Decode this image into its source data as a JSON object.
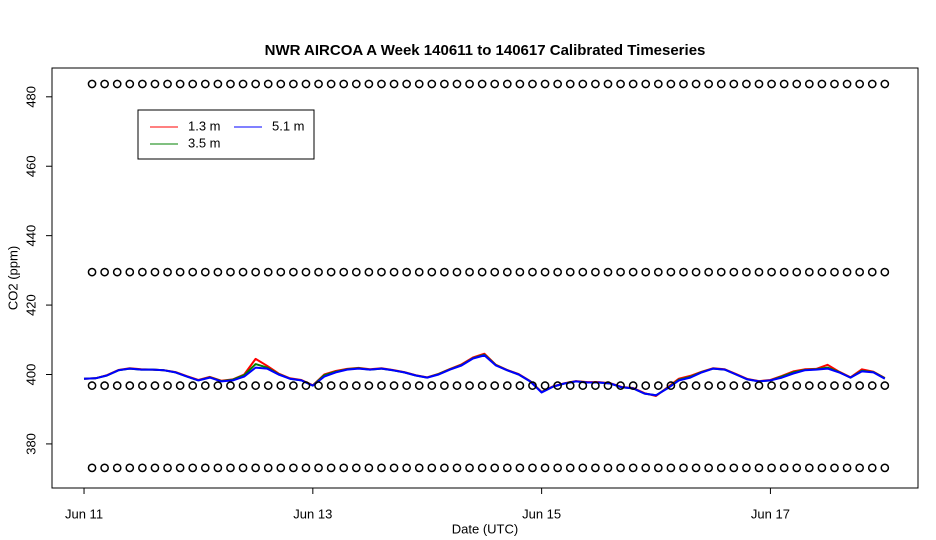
{
  "chart_data": {
    "type": "line",
    "title": "NWR AIRCOA A  Week 140611 to 140617  Calibrated Timeseries",
    "x_label": "Date (UTC)",
    "y_label": "CO2 (ppm)",
    "xlim": [
      -0.28,
      7.29
    ],
    "ylim": [
      367.3,
      488.3
    ],
    "xticks": [
      {
        "value": 0,
        "label": "Jun 11"
      },
      {
        "value": 2,
        "label": "Jun 13"
      },
      {
        "value": 4,
        "label": "Jun 15"
      },
      {
        "value": 6,
        "label": "Jun 17"
      }
    ],
    "yticks": [
      380,
      400,
      420,
      440,
      460,
      480
    ],
    "x": [
      0,
      0.1,
      0.2,
      0.3,
      0.4,
      0.5,
      0.6,
      0.7,
      0.8,
      0.9,
      1,
      1.1,
      1.2,
      1.3,
      1.4,
      1.5,
      1.6,
      1.7,
      1.8,
      1.9,
      2,
      2.1,
      2.2,
      2.3,
      2.4,
      2.5,
      2.6,
      2.7,
      2.8,
      2.9,
      3,
      3.1,
      3.2,
      3.3,
      3.4,
      3.5,
      3.6,
      3.7,
      3.8,
      3.9,
      4,
      4.1,
      4.2,
      4.3,
      4.4,
      4.5,
      4.6,
      4.7,
      4.8,
      4.9,
      5,
      5.1,
      5.2,
      5.3,
      5.4,
      5.5,
      5.6,
      5.7,
      5.8,
      5.9,
      6,
      6.1,
      6.2,
      6.3,
      6.4,
      6.5,
      6.6,
      6.7,
      6.8,
      6.9,
      7
    ],
    "series": [
      {
        "name": "1.3 m",
        "color": "#ff0000",
        "values": [
          398.8,
          398.9,
          399.8,
          401.3,
          401.8,
          401.5,
          401.4,
          401.2,
          400.7,
          399.5,
          398.4,
          399.3,
          398.2,
          398.6,
          400,
          404.5,
          402.5,
          400.3,
          398.9,
          398.4,
          396.9,
          400,
          401,
          401.6,
          401.9,
          401.5,
          401.8,
          401.3,
          400.7,
          399.8,
          399.2,
          400.2,
          401.6,
          402.9,
          404.9,
          406,
          402.8,
          401.3,
          400.1,
          398.1,
          395,
          396.6,
          397.5,
          398.1,
          397.8,
          397.8,
          397.5,
          396.4,
          396.1,
          394.6,
          393.8,
          396.3,
          398.8,
          399.6,
          400.8,
          401.8,
          401.5,
          400.1,
          398.7,
          398.1,
          398.4,
          399.6,
          400.9,
          401.5,
          401.6,
          402.8,
          400.8,
          399.2,
          401.5,
          400.8,
          399
        ]
      },
      {
        "name": "3.5 m",
        "color": "#008000",
        "values": [
          398.8,
          398.9,
          399.7,
          401.2,
          401.7,
          401.4,
          401.4,
          401.2,
          400.6,
          399.4,
          398.3,
          399.2,
          398.1,
          398.5,
          399.8,
          403,
          402,
          400.1,
          398.8,
          398.3,
          396.8,
          399.8,
          400.8,
          401.5,
          401.8,
          401.4,
          401.7,
          401.2,
          400.6,
          399.7,
          399.1,
          400.1,
          401.5,
          402.7,
          404.7,
          405.7,
          402.7,
          401.2,
          400,
          398,
          394.9,
          396.5,
          397.4,
          398,
          397.7,
          397.7,
          397.4,
          396.3,
          396,
          394.5,
          394,
          396.1,
          398.5,
          399.3,
          400.7,
          401.7,
          401.4,
          400,
          398.6,
          398,
          398.3,
          399.4,
          400.6,
          401.3,
          401.5,
          402,
          400.7,
          399.1,
          401.1,
          400.7,
          398.9
        ]
      },
      {
        "name": "5.1 m",
        "color": "#0000ff",
        "values": [
          398.8,
          398.9,
          399.7,
          401.2,
          401.7,
          401.4,
          401.4,
          401.2,
          400.6,
          399.4,
          398.3,
          399.1,
          398,
          398.3,
          399.4,
          402,
          401.7,
          400,
          398.8,
          398.3,
          396.8,
          399.4,
          400.6,
          401.4,
          401.7,
          401.4,
          401.7,
          401.2,
          400.6,
          399.7,
          399.1,
          400,
          401.4,
          402.6,
          404.6,
          405.5,
          402.6,
          401.2,
          400,
          398,
          394.8,
          396.5,
          397.4,
          398,
          397.7,
          397.7,
          397.4,
          396.3,
          396,
          394.5,
          394,
          396,
          398.3,
          399.1,
          400.6,
          401.7,
          401.4,
          400,
          398.6,
          398,
          398.3,
          399.1,
          400.3,
          401.2,
          401.4,
          401.7,
          400.6,
          399.1,
          400.9,
          400.6,
          398.8
        ]
      },
      {
        "type": "scatter",
        "color": "#000000",
        "x": [
          0.07,
          0.18,
          0.29,
          0.4,
          0.51,
          0.62,
          0.73,
          0.84,
          0.95,
          1.06,
          1.17,
          1.28,
          1.39,
          1.5,
          1.61,
          1.72,
          1.83,
          1.94,
          2.05,
          2.16,
          2.27,
          2.38,
          2.49,
          2.6,
          2.71,
          2.82,
          2.93,
          3.04,
          3.15,
          3.26,
          3.37,
          3.48,
          3.59,
          3.7,
          3.81,
          3.92,
          4.03,
          4.14,
          4.25,
          4.36,
          4.47,
          4.58,
          4.69,
          4.8,
          4.91,
          5.02,
          5.13,
          5.24,
          5.35,
          5.46,
          5.57,
          5.68,
          5.79,
          5.9,
          6.01,
          6.12,
          6.23,
          6.34,
          6.45,
          6.56,
          6.67,
          6.78,
          6.89,
          7
        ],
        "values": [
          483.7,
          483.7,
          483.7,
          483.7,
          483.7,
          483.7,
          483.7,
          483.7,
          483.7,
          483.7,
          483.7,
          483.7,
          483.7,
          483.7,
          483.7,
          483.7,
          483.7,
          483.7,
          483.7,
          483.7,
          483.7,
          483.7,
          483.7,
          483.7,
          483.7,
          483.7,
          483.7,
          483.7,
          483.7,
          483.7,
          483.7,
          483.7,
          483.7,
          483.7,
          483.7,
          483.7,
          483.7,
          483.7,
          483.7,
          483.7,
          483.7,
          483.7,
          483.7,
          483.7,
          483.7,
          483.7,
          483.7,
          483.7,
          483.7,
          483.7,
          483.7,
          483.7,
          483.7,
          483.7,
          483.7,
          483.7,
          483.7,
          483.7,
          483.7,
          483.7,
          483.7,
          483.7,
          483.7,
          483.7
        ]
      },
      {
        "type": "scatter",
        "color": "#000000",
        "x": [
          0.07,
          0.18,
          0.29,
          0.4,
          0.51,
          0.62,
          0.73,
          0.84,
          0.95,
          1.06,
          1.17,
          1.28,
          1.39,
          1.5,
          1.61,
          1.72,
          1.83,
          1.94,
          2.05,
          2.16,
          2.27,
          2.38,
          2.49,
          2.6,
          2.71,
          2.82,
          2.93,
          3.04,
          3.15,
          3.26,
          3.37,
          3.48,
          3.59,
          3.7,
          3.81,
          3.92,
          4.03,
          4.14,
          4.25,
          4.36,
          4.47,
          4.58,
          4.69,
          4.8,
          4.91,
          5.02,
          5.13,
          5.24,
          5.35,
          5.46,
          5.57,
          5.68,
          5.79,
          5.9,
          6.01,
          6.12,
          6.23,
          6.34,
          6.45,
          6.56,
          6.67,
          6.78,
          6.89,
          7
        ],
        "values": [
          429.5,
          429.5,
          429.5,
          429.5,
          429.5,
          429.5,
          429.5,
          429.5,
          429.5,
          429.5,
          429.5,
          429.5,
          429.5,
          429.5,
          429.5,
          429.5,
          429.5,
          429.5,
          429.5,
          429.5,
          429.5,
          429.5,
          429.5,
          429.5,
          429.5,
          429.5,
          429.5,
          429.5,
          429.5,
          429.5,
          429.5,
          429.5,
          429.5,
          429.5,
          429.5,
          429.5,
          429.5,
          429.5,
          429.5,
          429.5,
          429.5,
          429.5,
          429.5,
          429.5,
          429.5,
          429.5,
          429.5,
          429.5,
          429.5,
          429.5,
          429.5,
          429.5,
          429.5,
          429.5,
          429.5,
          429.5,
          429.5,
          429.5,
          429.5,
          429.5,
          429.5,
          429.5,
          429.5,
          429.5
        ]
      },
      {
        "type": "scatter",
        "color": "#000000",
        "x": [
          0.07,
          0.18,
          0.29,
          0.4,
          0.51,
          0.62,
          0.73,
          0.84,
          0.95,
          1.06,
          1.17,
          1.28,
          1.39,
          1.5,
          1.61,
          1.72,
          1.83,
          1.94,
          2.05,
          2.16,
          2.27,
          2.38,
          2.49,
          2.6,
          2.71,
          2.82,
          2.93,
          3.04,
          3.15,
          3.26,
          3.37,
          3.48,
          3.59,
          3.7,
          3.81,
          3.92,
          4.03,
          4.14,
          4.25,
          4.36,
          4.47,
          4.58,
          4.69,
          4.8,
          4.91,
          5.02,
          5.13,
          5.24,
          5.35,
          5.46,
          5.57,
          5.68,
          5.79,
          5.9,
          6.01,
          6.12,
          6.23,
          6.34,
          6.45,
          6.56,
          6.67,
          6.78,
          6.89,
          7
        ],
        "values": [
          396.8,
          396.8,
          396.8,
          396.8,
          396.8,
          396.8,
          396.8,
          396.8,
          396.8,
          396.8,
          396.8,
          396.8,
          396.8,
          396.8,
          396.8,
          396.8,
          396.8,
          396.8,
          396.8,
          396.8,
          396.8,
          396.8,
          396.8,
          396.8,
          396.8,
          396.8,
          396.8,
          396.8,
          396.8,
          396.8,
          396.8,
          396.8,
          396.8,
          396.8,
          396.8,
          396.8,
          396.8,
          396.8,
          396.8,
          396.8,
          396.8,
          396.8,
          396.8,
          396.8,
          396.8,
          396.8,
          396.8,
          396.8,
          396.8,
          396.8,
          396.8,
          396.8,
          396.8,
          396.8,
          396.8,
          396.8,
          396.8,
          396.8,
          396.8,
          396.8,
          396.8,
          396.8,
          396.8,
          396.8
        ]
      },
      {
        "type": "scatter",
        "color": "#000000",
        "x": [
          0.07,
          0.18,
          0.29,
          0.4,
          0.51,
          0.62,
          0.73,
          0.84,
          0.95,
          1.06,
          1.17,
          1.28,
          1.39,
          1.5,
          1.61,
          1.72,
          1.83,
          1.94,
          2.05,
          2.16,
          2.27,
          2.38,
          2.49,
          2.6,
          2.71,
          2.82,
          2.93,
          3.04,
          3.15,
          3.26,
          3.37,
          3.48,
          3.59,
          3.7,
          3.81,
          3.92,
          4.03,
          4.14,
          4.25,
          4.36,
          4.47,
          4.58,
          4.69,
          4.8,
          4.91,
          5.02,
          5.13,
          5.24,
          5.35,
          5.46,
          5.57,
          5.68,
          5.79,
          5.9,
          6.01,
          6.12,
          6.23,
          6.34,
          6.45,
          6.56,
          6.67,
          6.78,
          6.89,
          7
        ],
        "values": [
          373.1,
          373.1,
          373.1,
          373.1,
          373.1,
          373.1,
          373.1,
          373.1,
          373.1,
          373.1,
          373.1,
          373.1,
          373.1,
          373.1,
          373.1,
          373.1,
          373.1,
          373.1,
          373.1,
          373.1,
          373.1,
          373.1,
          373.1,
          373.1,
          373.1,
          373.1,
          373.1,
          373.1,
          373.1,
          373.1,
          373.1,
          373.1,
          373.1,
          373.1,
          373.1,
          373.1,
          373.1,
          373.1,
          373.1,
          373.1,
          373.1,
          373.1,
          373.1,
          373.1,
          373.1,
          373.1,
          373.1,
          373.1,
          373.1,
          373.1,
          373.1,
          373.1,
          373.1,
          373.1,
          373.1,
          373.1,
          373.1,
          373.1,
          373.1,
          373.1,
          373.1,
          373.1,
          373.1,
          373.1
        ]
      }
    ]
  }
}
